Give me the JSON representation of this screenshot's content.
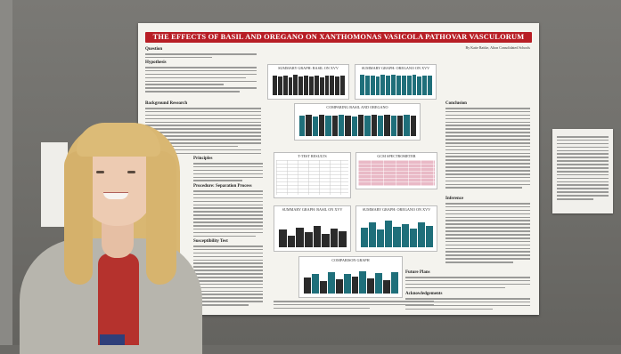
{
  "poster": {
    "title": "THE EFFECTS OF BASIL AND OREGANO ON XANTHOMONAS VASICOLA PATHOVAR VASCULORUM",
    "byline": "By Katie Rattke, Alton Consolidated Schools",
    "sections": {
      "question": "Question",
      "hypothesis": "Hypothesis",
      "background": "Background Research",
      "principles": "Principles",
      "procedure": "Procedure: Separation Process",
      "susceptibility": "Susceptibility Test",
      "conclusion": "Conclusion",
      "inference": "Inference",
      "future": "Future Plans",
      "acknowledgements": "Acknowledgements"
    },
    "charts": {
      "basil_top": "SUMMARY GRAPH: BASIL ON XVV",
      "oregano_top": "SUMMARY GRAPH: OREGANO ON XVV",
      "comparing": "COMPARING BASIL AND OREGANO",
      "t_test": "T-TEST RESULTS",
      "gcm": "GCM SPECTROMETER",
      "basil_bottom": "SUMMARY GRAPH: BASIL ON XVV",
      "oregano_bottom": "SUMMARY GRAPH: OREGANO ON XVV",
      "comparison_bottom": "COMPARISON GRAPH"
    }
  },
  "colors": {
    "title_bar": "#b81e25",
    "basil_bars": "#2b2b2b",
    "oregano_bars": "#1f6f7a",
    "table_pink": "#e9b9c6"
  }
}
